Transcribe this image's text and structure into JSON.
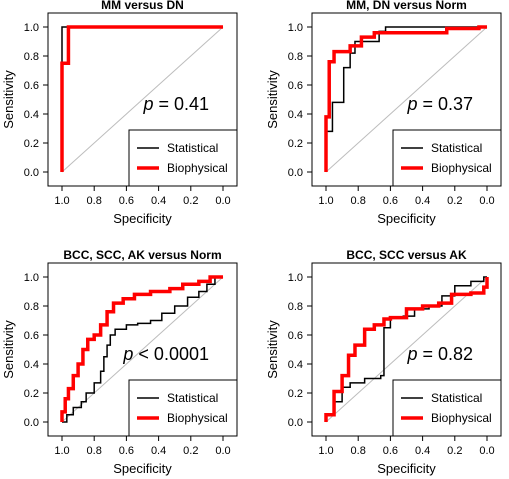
{
  "figure": {
    "panels": [
      {
        "id": "mm-dn",
        "title": "MM versus DN",
        "pvalue": "= 0.41",
        "pvalue_prefix": "p"
      },
      {
        "id": "mm-dn-norm",
        "title": "MM, DN versus Norm",
        "pvalue": "= 0.37",
        "pvalue_prefix": "p"
      },
      {
        "id": "bcc-scc-ak-norm",
        "title": "BCC, SCC, AK versus Norm",
        "pvalue": "< 0.0001",
        "pvalue_prefix": "p"
      },
      {
        "id": "bcc-scc-ak",
        "title": "BCC, SCC versus AK",
        "pvalue": "= 0.82",
        "pvalue_prefix": "p"
      }
    ]
  },
  "colors": {
    "statistical": "#000000",
    "biophysical": "#ff0000",
    "diagonal": "#bdbdbd"
  },
  "chart_data": [
    {
      "type": "line",
      "title": "MM versus DN",
      "xlabel": "Specificity",
      "ylabel": "Sensitivity",
      "x_reversed": true,
      "xlim": [
        1.0,
        0.0
      ],
      "ylim": [
        0.0,
        1.0
      ],
      "xticks": [
        "1.0",
        "0.8",
        "0.6",
        "0.4",
        "0.2",
        "0.0"
      ],
      "yticks": [
        "0.0",
        "0.2",
        "0.4",
        "0.6",
        "0.8",
        "1.0"
      ],
      "legend": [
        "Statistical",
        "Biophysical"
      ],
      "annotation": "p = 0.41",
      "series": [
        {
          "name": "Statistical",
          "points": [
            [
              1.0,
              0.0
            ],
            [
              1.0,
              0.75
            ],
            [
              1.0,
              1.0
            ],
            [
              0.92,
              1.0
            ],
            [
              0.0,
              1.0
            ]
          ]
        },
        {
          "name": "Biophysical",
          "points": [
            [
              1.0,
              0.0
            ],
            [
              1.0,
              0.75
            ],
            [
              0.96,
              0.75
            ],
            [
              0.96,
              1.0
            ],
            [
              0.0,
              1.0
            ]
          ]
        }
      ]
    },
    {
      "type": "line",
      "title": "MM, DN versus Norm",
      "xlabel": "Specificity",
      "ylabel": "Sensitivity",
      "x_reversed": true,
      "xlim": [
        1.0,
        0.0
      ],
      "ylim": [
        0.0,
        1.0
      ],
      "xticks": [
        "1.0",
        "0.8",
        "0.6",
        "0.4",
        "0.2",
        "0.0"
      ],
      "yticks": [
        "0.0",
        "0.2",
        "0.4",
        "0.6",
        "0.8",
        "1.0"
      ],
      "legend": [
        "Statistical",
        "Biophysical"
      ],
      "annotation": "p = 0.37",
      "series": [
        {
          "name": "Statistical",
          "points": [
            [
              1.0,
              0.0
            ],
            [
              1.0,
              0.28
            ],
            [
              0.96,
              0.28
            ],
            [
              0.96,
              0.48
            ],
            [
              0.89,
              0.48
            ],
            [
              0.89,
              0.72
            ],
            [
              0.85,
              0.72
            ],
            [
              0.85,
              0.82
            ],
            [
              0.82,
              0.82
            ],
            [
              0.82,
              0.9
            ],
            [
              0.67,
              0.9
            ],
            [
              0.67,
              0.97
            ],
            [
              0.63,
              0.97
            ],
            [
              0.63,
              1.0
            ],
            [
              0.0,
              1.0
            ]
          ]
        },
        {
          "name": "Biophysical",
          "points": [
            [
              1.0,
              0.0
            ],
            [
              1.0,
              0.38
            ],
            [
              0.98,
              0.38
            ],
            [
              0.98,
              0.76
            ],
            [
              0.95,
              0.76
            ],
            [
              0.95,
              0.83
            ],
            [
              0.85,
              0.83
            ],
            [
              0.85,
              0.87
            ],
            [
              0.78,
              0.87
            ],
            [
              0.78,
              0.93
            ],
            [
              0.7,
              0.93
            ],
            [
              0.7,
              0.96
            ],
            [
              0.25,
              0.96
            ],
            [
              0.25,
              0.99
            ],
            [
              0.05,
              0.99
            ],
            [
              0.05,
              1.0
            ],
            [
              0.0,
              1.0
            ]
          ]
        }
      ]
    },
    {
      "type": "line",
      "title": "BCC, SCC, AK versus Norm",
      "xlabel": "Specificity",
      "ylabel": "Sensitivity",
      "x_reversed": true,
      "xlim": [
        1.0,
        0.0
      ],
      "ylim": [
        0.0,
        1.0
      ],
      "xticks": [
        "1.0",
        "0.8",
        "0.6",
        "0.4",
        "0.2",
        "0.0"
      ],
      "yticks": [
        "0.0",
        "0.2",
        "0.4",
        "0.6",
        "0.8",
        "1.0"
      ],
      "legend": [
        "Statistical",
        "Biophysical"
      ],
      "annotation": "p < 0.0001",
      "series": [
        {
          "name": "Statistical",
          "points": [
            [
              1.0,
              0.0
            ],
            [
              0.97,
              0.0
            ],
            [
              0.97,
              0.05
            ],
            [
              0.93,
              0.05
            ],
            [
              0.93,
              0.1
            ],
            [
              0.88,
              0.1
            ],
            [
              0.88,
              0.14
            ],
            [
              0.85,
              0.14
            ],
            [
              0.85,
              0.2
            ],
            [
              0.8,
              0.2
            ],
            [
              0.8,
              0.27
            ],
            [
              0.76,
              0.27
            ],
            [
              0.76,
              0.35
            ],
            [
              0.74,
              0.35
            ],
            [
              0.74,
              0.45
            ],
            [
              0.72,
              0.45
            ],
            [
              0.72,
              0.53
            ],
            [
              0.7,
              0.53
            ],
            [
              0.7,
              0.6
            ],
            [
              0.67,
              0.6
            ],
            [
              0.67,
              0.64
            ],
            [
              0.6,
              0.64
            ],
            [
              0.6,
              0.67
            ],
            [
              0.53,
              0.67
            ],
            [
              0.53,
              0.68
            ],
            [
              0.45,
              0.68
            ],
            [
              0.45,
              0.7
            ],
            [
              0.38,
              0.7
            ],
            [
              0.38,
              0.75
            ],
            [
              0.3,
              0.75
            ],
            [
              0.3,
              0.8
            ],
            [
              0.22,
              0.8
            ],
            [
              0.22,
              0.86
            ],
            [
              0.15,
              0.86
            ],
            [
              0.15,
              0.9
            ],
            [
              0.1,
              0.9
            ],
            [
              0.1,
              0.95
            ],
            [
              0.05,
              0.95
            ],
            [
              0.05,
              1.0
            ],
            [
              0.0,
              1.0
            ]
          ]
        },
        {
          "name": "Biophysical",
          "points": [
            [
              1.0,
              0.0
            ],
            [
              1.0,
              0.07
            ],
            [
              0.98,
              0.07
            ],
            [
              0.98,
              0.16
            ],
            [
              0.96,
              0.16
            ],
            [
              0.96,
              0.23
            ],
            [
              0.93,
              0.23
            ],
            [
              0.93,
              0.32
            ],
            [
              0.9,
              0.32
            ],
            [
              0.9,
              0.4
            ],
            [
              0.87,
              0.4
            ],
            [
              0.87,
              0.5
            ],
            [
              0.84,
              0.5
            ],
            [
              0.84,
              0.57
            ],
            [
              0.8,
              0.57
            ],
            [
              0.8,
              0.6
            ],
            [
              0.76,
              0.6
            ],
            [
              0.76,
              0.67
            ],
            [
              0.72,
              0.67
            ],
            [
              0.72,
              0.76
            ],
            [
              0.68,
              0.76
            ],
            [
              0.68,
              0.82
            ],
            [
              0.62,
              0.82
            ],
            [
              0.62,
              0.85
            ],
            [
              0.55,
              0.85
            ],
            [
              0.55,
              0.88
            ],
            [
              0.45,
              0.88
            ],
            [
              0.45,
              0.9
            ],
            [
              0.33,
              0.9
            ],
            [
              0.33,
              0.92
            ],
            [
              0.25,
              0.92
            ],
            [
              0.25,
              0.95
            ],
            [
              0.15,
              0.95
            ],
            [
              0.15,
              0.97
            ],
            [
              0.08,
              0.97
            ],
            [
              0.08,
              1.0
            ],
            [
              0.0,
              1.0
            ]
          ]
        }
      ]
    },
    {
      "type": "line",
      "title": "BCC, SCC versus AK",
      "xlabel": "Specificity",
      "ylabel": "Sensitivity",
      "x_reversed": true,
      "xlim": [
        1.0,
        0.0
      ],
      "ylim": [
        0.0,
        1.0
      ],
      "xticks": [
        "1.0",
        "0.8",
        "0.6",
        "0.4",
        "0.2",
        "0.0"
      ],
      "yticks": [
        "0.0",
        "0.2",
        "0.4",
        "0.6",
        "0.8",
        "1.0"
      ],
      "legend": [
        "Statistical",
        "Biophysical"
      ],
      "annotation": "p = 0.82",
      "series": [
        {
          "name": "Statistical",
          "points": [
            [
              1.0,
              0.0
            ],
            [
              1.0,
              0.05
            ],
            [
              0.95,
              0.05
            ],
            [
              0.95,
              0.14
            ],
            [
              0.9,
              0.14
            ],
            [
              0.9,
              0.24
            ],
            [
              0.85,
              0.24
            ],
            [
              0.85,
              0.27
            ],
            [
              0.76,
              0.27
            ],
            [
              0.76,
              0.3
            ],
            [
              0.66,
              0.3
            ],
            [
              0.66,
              0.32
            ],
            [
              0.64,
              0.32
            ],
            [
              0.64,
              0.65
            ],
            [
              0.6,
              0.65
            ],
            [
              0.6,
              0.72
            ],
            [
              0.52,
              0.72
            ],
            [
              0.52,
              0.73
            ],
            [
              0.45,
              0.73
            ],
            [
              0.45,
              0.78
            ],
            [
              0.36,
              0.78
            ],
            [
              0.36,
              0.8
            ],
            [
              0.28,
              0.8
            ],
            [
              0.28,
              0.87
            ],
            [
              0.2,
              0.87
            ],
            [
              0.2,
              0.94
            ],
            [
              0.1,
              0.94
            ],
            [
              0.1,
              0.97
            ],
            [
              0.02,
              0.97
            ],
            [
              0.02,
              1.0
            ],
            [
              0.0,
              1.0
            ]
          ]
        },
        {
          "name": "Biophysical",
          "points": [
            [
              1.0,
              0.0
            ],
            [
              1.0,
              0.05
            ],
            [
              0.95,
              0.05
            ],
            [
              0.95,
              0.21
            ],
            [
              0.9,
              0.21
            ],
            [
              0.9,
              0.32
            ],
            [
              0.86,
              0.32
            ],
            [
              0.86,
              0.46
            ],
            [
              0.82,
              0.46
            ],
            [
              0.82,
              0.53
            ],
            [
              0.76,
              0.53
            ],
            [
              0.76,
              0.64
            ],
            [
              0.7,
              0.64
            ],
            [
              0.7,
              0.67
            ],
            [
              0.64,
              0.67
            ],
            [
              0.64,
              0.71
            ],
            [
              0.6,
              0.71
            ],
            [
              0.6,
              0.72
            ],
            [
              0.5,
              0.72
            ],
            [
              0.5,
              0.78
            ],
            [
              0.4,
              0.78
            ],
            [
              0.4,
              0.8
            ],
            [
              0.3,
              0.8
            ],
            [
              0.3,
              0.82
            ],
            [
              0.22,
              0.82
            ],
            [
              0.22,
              0.88
            ],
            [
              0.1,
              0.88
            ],
            [
              0.1,
              0.89
            ],
            [
              0.02,
              0.89
            ],
            [
              0.02,
              0.93
            ],
            [
              0.0,
              0.93
            ],
            [
              0.0,
              1.0
            ]
          ]
        }
      ]
    }
  ]
}
